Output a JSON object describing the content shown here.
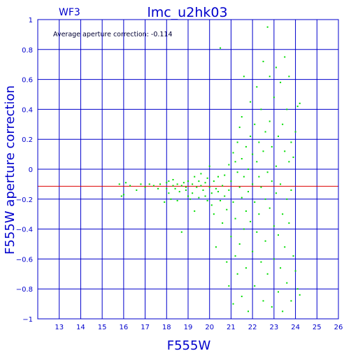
{
  "chart_data": {
    "type": "scatter",
    "chip_label": "WF3",
    "title": "lmc_u2hk03",
    "annotation": "Average aperture correction: -0.114",
    "xlabel": "F555W",
    "ylabel": "F555W aperture correction",
    "xlim": [
      12,
      26
    ],
    "ylim": [
      -1,
      1
    ],
    "x_ticks": [
      13,
      14,
      15,
      16,
      17,
      18,
      19,
      20,
      21,
      22,
      23,
      24,
      25,
      26
    ],
    "y_ticks": [
      1,
      0.8,
      0.6,
      0.4,
      0.2,
      0,
      -0.2,
      -0.4,
      -0.6,
      -0.8,
      -1
    ],
    "y_tick_labels": [
      "1",
      "0.8",
      "0.6",
      "0.4",
      "0.2",
      "0",
      "−0.2",
      "−0.4",
      "−0.6",
      "−0.8",
      "−1"
    ],
    "grid": true,
    "reference_line": -0.114,
    "colors": {
      "axes": "#0000cc",
      "points": "#00dd00",
      "reference": "#dd0000"
    },
    "points": [
      [
        15.8,
        -0.1
      ],
      [
        15.9,
        -0.18
      ],
      [
        16.0,
        -0.17
      ],
      [
        16.1,
        -0.09
      ],
      [
        16.3,
        -0.11
      ],
      [
        16.6,
        -0.14
      ],
      [
        16.8,
        -0.1
      ],
      [
        17.0,
        -0.12
      ],
      [
        17.2,
        -0.1
      ],
      [
        17.4,
        -0.11
      ],
      [
        17.6,
        -0.13
      ],
      [
        17.7,
        -0.1
      ],
      [
        17.9,
        -0.22
      ],
      [
        18.0,
        -0.09
      ],
      [
        18.0,
        -0.13
      ],
      [
        18.1,
        -0.16
      ],
      [
        18.1,
        -0.08
      ],
      [
        18.2,
        -0.2
      ],
      [
        18.3,
        -0.11
      ],
      [
        18.3,
        -0.07
      ],
      [
        18.4,
        -0.13
      ],
      [
        18.5,
        -0.21
      ],
      [
        18.5,
        -0.1
      ],
      [
        18.6,
        -0.15
      ],
      [
        18.7,
        -0.42
      ],
      [
        18.7,
        -0.11
      ],
      [
        18.8,
        -0.09
      ],
      [
        18.9,
        -0.14
      ],
      [
        18.9,
        -0.12
      ],
      [
        19.0,
        -0.18
      ],
      [
        19.0,
        -0.08
      ],
      [
        19.1,
        -0.2
      ],
      [
        19.2,
        -0.1
      ],
      [
        19.2,
        -0.16
      ],
      [
        19.3,
        -0.05
      ],
      [
        19.3,
        -0.28
      ],
      [
        19.4,
        -0.12
      ],
      [
        19.5,
        -0.08
      ],
      [
        19.5,
        -0.19
      ],
      [
        19.6,
        -0.11
      ],
      [
        19.6,
        -0.03
      ],
      [
        19.7,
        -0.14
      ],
      [
        19.8,
        -0.18
      ],
      [
        19.8,
        -0.09
      ],
      [
        19.9,
        -0.06
      ],
      [
        19.9,
        -0.21
      ],
      [
        20.0,
        -0.12
      ],
      [
        20.0,
        0.02
      ],
      [
        20.1,
        -0.16
      ],
      [
        20.1,
        -0.24
      ],
      [
        20.2,
        -0.08
      ],
      [
        20.2,
        -0.3
      ],
      [
        20.3,
        -0.13
      ],
      [
        20.3,
        -0.52
      ],
      [
        20.4,
        -0.05
      ],
      [
        20.4,
        -0.15
      ],
      [
        20.5,
        -0.21
      ],
      [
        20.5,
        0.81
      ],
      [
        20.6,
        -0.11
      ],
      [
        20.6,
        -0.36
      ],
      [
        20.7,
        -0.04
      ],
      [
        20.7,
        -0.18
      ],
      [
        20.8,
        -0.62
      ],
      [
        20.8,
        -0.27
      ],
      [
        20.9,
        0.03
      ],
      [
        20.9,
        -0.14
      ],
      [
        20.9,
        -0.78
      ],
      [
        21.0,
        -0.08
      ],
      [
        21.0,
        -0.45
      ],
      [
        21.1,
        0.11
      ],
      [
        21.1,
        -0.22
      ],
      [
        21.1,
        -0.9
      ],
      [
        21.2,
        0.05
      ],
      [
        21.2,
        -0.33
      ],
      [
        21.2,
        -0.58
      ],
      [
        21.3,
        0.18
      ],
      [
        21.3,
        -0.02
      ],
      [
        21.3,
        -0.7
      ],
      [
        21.4,
        0.28
      ],
      [
        21.4,
        -0.12
      ],
      [
        21.4,
        -0.5
      ],
      [
        21.5,
        0.07
      ],
      [
        21.5,
        -0.19
      ],
      [
        21.5,
        -0.85
      ],
      [
        21.5,
        0.35
      ],
      [
        21.6,
        -0.05
      ],
      [
        21.6,
        -0.4
      ],
      [
        21.6,
        0.62
      ],
      [
        21.7,
        0.15
      ],
      [
        21.7,
        -0.28
      ],
      [
        21.7,
        -0.66
      ],
      [
        21.8,
        0.0
      ],
      [
        21.8,
        -0.15
      ],
      [
        21.8,
        -0.95
      ],
      [
        21.9,
        0.22
      ],
      [
        21.9,
        -0.35
      ],
      [
        21.9,
        0.45
      ],
      [
        22.0,
        -0.1
      ],
      [
        22.0,
        -0.55
      ],
      [
        22.0,
        0.1
      ],
      [
        22.1,
        0.3
      ],
      [
        22.1,
        -0.22
      ],
      [
        22.1,
        -0.78
      ],
      [
        22.2,
        0.05
      ],
      [
        22.2,
        -0.42
      ],
      [
        22.2,
        0.55
      ],
      [
        22.3,
        -0.05
      ],
      [
        22.3,
        -0.3
      ],
      [
        22.3,
        0.18
      ],
      [
        22.4,
        -0.62
      ],
      [
        22.4,
        0.4
      ],
      [
        22.4,
        -0.12
      ],
      [
        22.5,
        0.72
      ],
      [
        22.5,
        -0.88
      ],
      [
        22.5,
        0.12
      ],
      [
        22.6,
        -0.2
      ],
      [
        22.6,
        -0.48
      ],
      [
        22.6,
        0.25
      ],
      [
        22.7,
        0.95
      ],
      [
        22.7,
        -0.02
      ],
      [
        22.7,
        -0.7
      ],
      [
        22.8,
        0.32
      ],
      [
        22.8,
        -0.26
      ],
      [
        22.8,
        0.62
      ],
      [
        22.9,
        -0.08
      ],
      [
        22.9,
        -0.92
      ],
      [
        22.9,
        0.15
      ],
      [
        23.0,
        -0.38
      ],
      [
        23.0,
        0.48
      ],
      [
        23.0,
        -0.6
      ],
      [
        23.1,
        0.02
      ],
      [
        23.1,
        0.68
      ],
      [
        23.1,
        -0.16
      ],
      [
        23.2,
        -0.82
      ],
      [
        23.2,
        0.22
      ],
      [
        23.2,
        -0.44
      ],
      [
        23.3,
        0.58
      ],
      [
        23.3,
        -0.1
      ],
      [
        23.3,
        -0.66
      ],
      [
        23.4,
        0.3
      ],
      [
        23.4,
        -0.3
      ],
      [
        23.4,
        -0.95
      ],
      [
        23.5,
        0.12
      ],
      [
        23.5,
        0.75
      ],
      [
        23.5,
        -0.52
      ],
      [
        23.6,
        -0.2
      ],
      [
        23.6,
        0.4
      ],
      [
        23.6,
        -0.76
      ],
      [
        23.7,
        0.05
      ],
      [
        23.7,
        -0.36
      ],
      [
        23.7,
        0.62
      ],
      [
        23.8,
        -0.88
      ],
      [
        23.8,
        0.18
      ],
      [
        23.8,
        -0.14
      ],
      [
        23.9,
        0.08
      ],
      [
        23.9,
        -0.58
      ],
      [
        24.0,
        -0.68
      ],
      [
        24.0,
        0.25
      ],
      [
        24.1,
        -0.8
      ],
      [
        24.1,
        0.42
      ],
      [
        24.2,
        -0.84
      ],
      [
        24.2,
        0.44
      ]
    ]
  }
}
